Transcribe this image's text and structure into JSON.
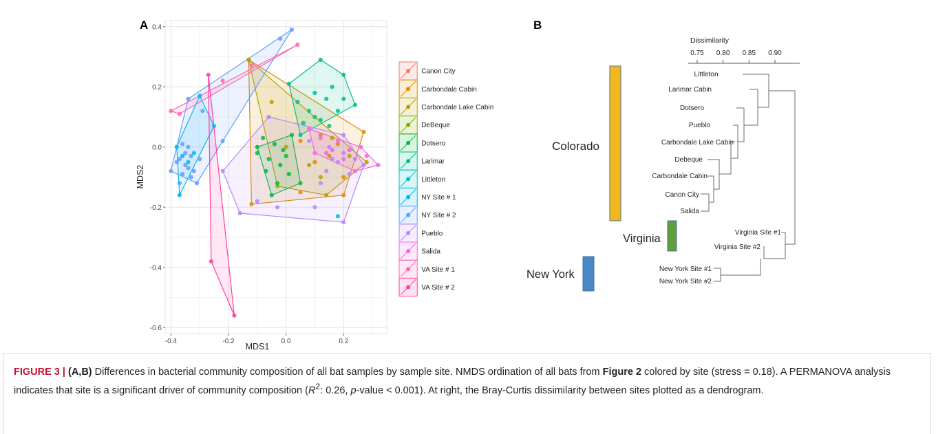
{
  "panel_a": {
    "label": "A",
    "xlabel": "MDS1",
    "ylabel": "MDS2",
    "x_ticks": [
      "-0.4",
      "-0.2",
      "0.0",
      "0.2"
    ],
    "y_ticks": [
      "0.4",
      "0.2",
      "0.0",
      "-0.2",
      "-0.4",
      "-0.6"
    ]
  },
  "panel_b": {
    "label": "B",
    "axis_title": "Dissimilarity",
    "axis_ticks": [
      "0.75",
      "0.80",
      "0.85",
      "0.90"
    ],
    "groups": [
      {
        "name": "Colorado",
        "color": "#f2b71a"
      },
      {
        "name": "Virginia",
        "color": "#5f9e3a"
      },
      {
        "name": "New York",
        "color": "#4a87c5"
      }
    ],
    "leaves": [
      "Littleton",
      "Larimar Cabin",
      "Dotsero",
      "Pueblo",
      "Carbondale Lake Cabin",
      "Debeque",
      "Carbondale Cabin",
      "Canon City",
      "Salida",
      "Virginia Site #1",
      "Virginia Site #2",
      "New York Site #1",
      "New York Site #2"
    ]
  },
  "chart_data": [
    {
      "type": "scatter",
      "title": "",
      "xlabel": "MDS1",
      "ylabel": "MDS2",
      "xlim": [
        -0.42,
        0.35
      ],
      "ylim": [
        -0.62,
        0.42
      ],
      "grid": true,
      "legend_position": "right",
      "series": [
        {
          "name": "Canon City",
          "color": "#f8766d",
          "hull": [],
          "points": []
        },
        {
          "name": "Carbondale Cabin",
          "color": "#de8c00",
          "hull": [
            [
              -0.13,
              0.29
            ],
            [
              0.27,
              0.05
            ],
            [
              0.2,
              -0.16
            ],
            [
              -0.12,
              -0.19
            ]
          ],
          "points": [
            [
              -0.13,
              0.29
            ],
            [
              -0.05,
              0.15
            ],
            [
              0.05,
              0.02
            ],
            [
              0.1,
              -0.05
            ],
            [
              0.15,
              -0.03
            ],
            [
              0.2,
              -0.1
            ],
            [
              0.27,
              0.05
            ],
            [
              0.2,
              -0.16
            ],
            [
              0.05,
              -0.15
            ],
            [
              -0.12,
              -0.19
            ],
            [
              0.18,
              0.01
            ],
            [
              0.12,
              0.04
            ]
          ]
        },
        {
          "name": "Carbondale Lake Cabin",
          "color": "#b79f00",
          "hull": [
            [
              -0.13,
              0.29
            ],
            [
              0.28,
              -0.05
            ],
            [
              0.14,
              -0.16
            ],
            [
              -0.03,
              -0.13
            ]
          ],
          "points": [
            [
              -0.13,
              0.29
            ],
            [
              0.0,
              0.0
            ],
            [
              0.08,
              -0.06
            ],
            [
              0.14,
              -0.16
            ],
            [
              0.28,
              -0.05
            ],
            [
              0.22,
              -0.03
            ],
            [
              0.12,
              -0.1
            ],
            [
              -0.03,
              -0.13
            ],
            [
              0.16,
              0.03
            ]
          ]
        },
        {
          "name": "DeBeque",
          "color": "#7cae00",
          "hull": [],
          "points": []
        },
        {
          "name": "Dotsero",
          "color": "#00ba38",
          "hull": [
            [
              -0.1,
              0.0
            ],
            [
              0.02,
              0.04
            ],
            [
              0.05,
              -0.12
            ],
            [
              -0.05,
              -0.16
            ]
          ],
          "points": [
            [
              -0.1,
              0.0
            ],
            [
              -0.1,
              -0.02
            ],
            [
              -0.08,
              0.03
            ],
            [
              -0.06,
              -0.04
            ],
            [
              -0.04,
              0.01
            ],
            [
              -0.02,
              -0.06
            ],
            [
              0.0,
              -0.03
            ],
            [
              0.02,
              0.04
            ],
            [
              0.05,
              -0.12
            ],
            [
              -0.05,
              -0.16
            ],
            [
              -0.03,
              -0.12
            ],
            [
              0.01,
              -0.09
            ],
            [
              -0.07,
              -0.08
            ],
            [
              -0.01,
              -0.01
            ]
          ]
        },
        {
          "name": "Larimar",
          "color": "#00c08b",
          "hull": [
            [
              0.01,
              0.21
            ],
            [
              0.12,
              0.29
            ],
            [
              0.2,
              0.24
            ],
            [
              0.24,
              0.14
            ],
            [
              0.05,
              0.04
            ]
          ],
          "points": [
            [
              0.01,
              0.21
            ],
            [
              0.12,
              0.29
            ],
            [
              0.2,
              0.24
            ],
            [
              0.24,
              0.14
            ],
            [
              0.05,
              0.04
            ],
            [
              0.1,
              0.18
            ],
            [
              0.14,
              0.16
            ],
            [
              0.16,
              0.2
            ],
            [
              0.18,
              0.12
            ],
            [
              0.08,
              0.12
            ],
            [
              0.04,
              0.15
            ],
            [
              0.12,
              0.09
            ],
            [
              0.2,
              0.16
            ],
            [
              0.06,
              0.08
            ],
            [
              0.15,
              0.07
            ],
            [
              0.1,
              0.1
            ]
          ]
        },
        {
          "name": "Littleton",
          "color": "#00bfc4",
          "hull": [],
          "points": [
            [
              0.18,
              -0.23
            ]
          ]
        },
        {
          "name": "NY Site # 1",
          "color": "#00b4f0",
          "hull": [
            [
              -0.38,
              0.0
            ],
            [
              -0.3,
              0.17
            ],
            [
              -0.25,
              0.07
            ],
            [
              -0.37,
              -0.16
            ]
          ],
          "points": [
            [
              -0.38,
              0.0
            ],
            [
              -0.3,
              0.17
            ],
            [
              -0.25,
              0.07
            ],
            [
              -0.37,
              -0.16
            ],
            [
              -0.34,
              -0.05
            ],
            [
              -0.36,
              -0.03
            ],
            [
              -0.32,
              -0.02
            ]
          ]
        },
        {
          "name": "NY Site # 2",
          "color": "#619cff",
          "hull": [
            [
              -0.4,
              -0.08
            ],
            [
              -0.34,
              0.16
            ],
            [
              0.02,
              0.39
            ],
            [
              -0.22,
              0.02
            ],
            [
              -0.31,
              -0.12
            ]
          ],
          "points": [
            [
              -0.4,
              -0.08
            ],
            [
              -0.34,
              0.16
            ],
            [
              0.02,
              0.39
            ],
            [
              -0.22,
              0.02
            ],
            [
              -0.31,
              -0.12
            ],
            [
              -0.37,
              -0.04
            ],
            [
              -0.35,
              -0.06
            ],
            [
              -0.33,
              -0.03
            ],
            [
              -0.36,
              -0.09
            ],
            [
              -0.34,
              -0.07
            ],
            [
              -0.38,
              -0.05
            ],
            [
              -0.32,
              -0.08
            ],
            [
              -0.35,
              -0.02
            ],
            [
              -0.33,
              -0.1
            ],
            [
              -0.36,
              0.01
            ],
            [
              -0.3,
              -0.04
            ],
            [
              -0.37,
              -0.12
            ],
            [
              -0.34,
              0.0
            ],
            [
              -0.02,
              0.36
            ],
            [
              -0.29,
              0.12
            ]
          ]
        },
        {
          "name": "Pueblo",
          "color": "#b983ff",
          "hull": [
            [
              -0.22,
              -0.08
            ],
            [
              -0.06,
              0.1
            ],
            [
              0.2,
              0.04
            ],
            [
              0.27,
              -0.06
            ],
            [
              0.2,
              -0.25
            ],
            [
              -0.16,
              -0.22
            ]
          ],
          "points": [
            [
              -0.22,
              -0.08
            ],
            [
              -0.06,
              0.1
            ],
            [
              0.2,
              0.04
            ],
            [
              0.27,
              -0.06
            ],
            [
              0.2,
              -0.25
            ],
            [
              -0.16,
              -0.22
            ],
            [
              0.15,
              0.0
            ],
            [
              0.18,
              -0.05
            ],
            [
              0.1,
              -0.2
            ],
            [
              -0.03,
              -0.2
            ],
            [
              0.12,
              -0.12
            ],
            [
              0.22,
              -0.09
            ],
            [
              0.08,
              0.02
            ],
            [
              -0.1,
              -0.18
            ],
            [
              0.16,
              -0.04
            ],
            [
              0.2,
              -0.02
            ],
            [
              0.24,
              -0.04
            ],
            [
              0.14,
              -0.08
            ]
          ]
        },
        {
          "name": "Salida",
          "color": "#f564e3",
          "hull": [
            [
              0.08,
              0.06
            ],
            [
              0.26,
              0.0
            ],
            [
              0.32,
              -0.06
            ],
            [
              0.24,
              -0.08
            ],
            [
              0.1,
              -0.02
            ]
          ],
          "points": [
            [
              0.08,
              0.06
            ],
            [
              0.26,
              0.0
            ],
            [
              0.32,
              -0.06
            ],
            [
              0.24,
              -0.08
            ],
            [
              0.1,
              -0.02
            ],
            [
              0.12,
              0.03
            ],
            [
              0.16,
              -0.01
            ],
            [
              0.2,
              -0.04
            ],
            [
              0.22,
              -0.01
            ],
            [
              0.18,
              0.02
            ],
            [
              0.28,
              -0.03
            ],
            [
              0.14,
              -0.02
            ]
          ]
        },
        {
          "name": "VA Site # 1",
          "color": "#ff64b0",
          "hull": [
            [
              -0.4,
              0.12
            ],
            [
              0.04,
              0.34
            ],
            [
              -0.37,
              0.11
            ]
          ],
          "points": [
            [
              -0.4,
              0.12
            ],
            [
              0.04,
              0.34
            ],
            [
              -0.37,
              0.11
            ],
            [
              -0.22,
              0.22
            ],
            [
              -0.12,
              0.27
            ]
          ]
        },
        {
          "name": "VA Site # 2",
          "color": "#ff3da2",
          "hull": [
            [
              -0.27,
              0.24
            ],
            [
              -0.26,
              -0.38
            ],
            [
              -0.18,
              -0.56
            ]
          ],
          "points": [
            [
              -0.27,
              0.24
            ],
            [
              -0.26,
              -0.38
            ],
            [
              -0.18,
              -0.56
            ]
          ]
        }
      ]
    },
    {
      "type": "dendrogram",
      "title": "",
      "xlabel": "Dissimilarity",
      "ticks": [
        0.75,
        0.8,
        0.85,
        0.9
      ],
      "leaves": [
        "Littleton",
        "Larimar Cabin",
        "Dotsero",
        "Pueblo",
        "Carbondale Lake Cabin",
        "Debeque",
        "Carbondale Cabin",
        "Canon City",
        "Salida",
        "Virginia Site #1",
        "Virginia Site #2",
        "New York Site #1",
        "New York Site #2"
      ]
    }
  ],
  "caption": {
    "head": "FIGURE 3 | ",
    "panels": "(A,B)",
    "text1": " Differences in bacterial community composition of all bat samples by sample site. NMDS ordination of all bats from ",
    "figref": "Figure 2",
    "text2": " colored by site (stress = 0.18). A PERMANOVA analysis indicates that site is a significant driver of community composition (",
    "r2_symbol": "R",
    "r2_sup": "2",
    "text3": ": 0.26, ",
    "p_symbol": "p",
    "text4": "-value < 0.001). At right, the Bray-Curtis dissimilarity between sites plotted as a dendrogram."
  }
}
